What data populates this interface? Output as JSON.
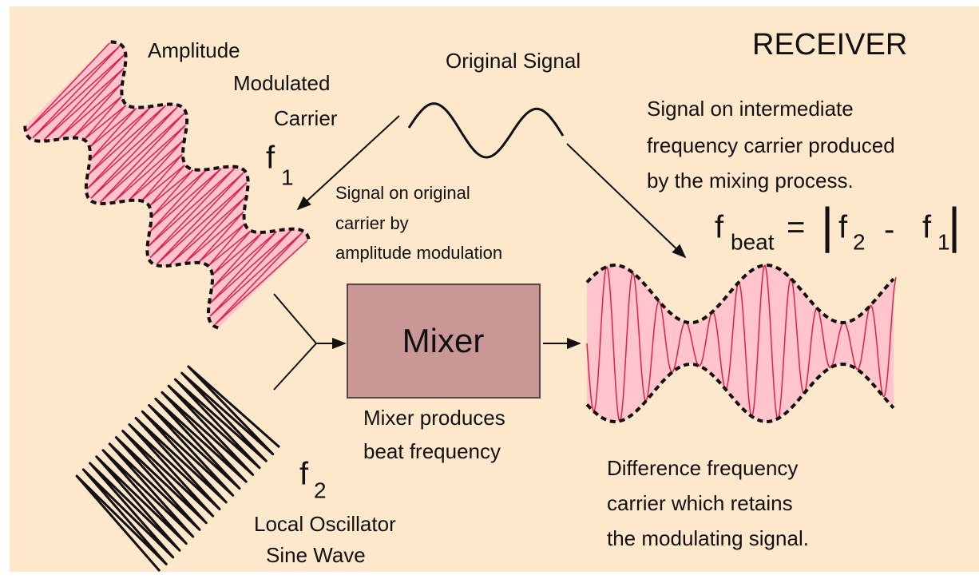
{
  "title": "RECEIVER",
  "am_carrier": {
    "label": [
      "Amplitude",
      "Modulated",
      "Carrier"
    ],
    "freq": {
      "symbol": "f",
      "subscript": "1"
    }
  },
  "original_signal": {
    "label": "Original Signal"
  },
  "if_note": [
    "Signal on intermediate",
    "frequency carrier produced",
    "by the mixing process."
  ],
  "am_note": [
    "Signal on original",
    "carrier by",
    "amplitude modulation"
  ],
  "formula": {
    "lhs": {
      "symbol": "f",
      "subscript": "beat"
    },
    "equals": "=",
    "bar": "|",
    "term1": {
      "symbol": "f",
      "subscript": "2"
    },
    "minus": "-",
    "term2": {
      "symbol": "f",
      "subscript": "1"
    }
  },
  "mixer": {
    "label": "Mixer",
    "note": [
      "Mixer produces",
      "beat frequency"
    ]
  },
  "local_oscillator": {
    "freq": {
      "symbol": "f",
      "subscript": "2"
    },
    "label": [
      "Local Oscillator",
      "Sine Wave"
    ]
  },
  "output_note": [
    "Difference frequency",
    "carrier which retains",
    "the modulating signal."
  ]
}
